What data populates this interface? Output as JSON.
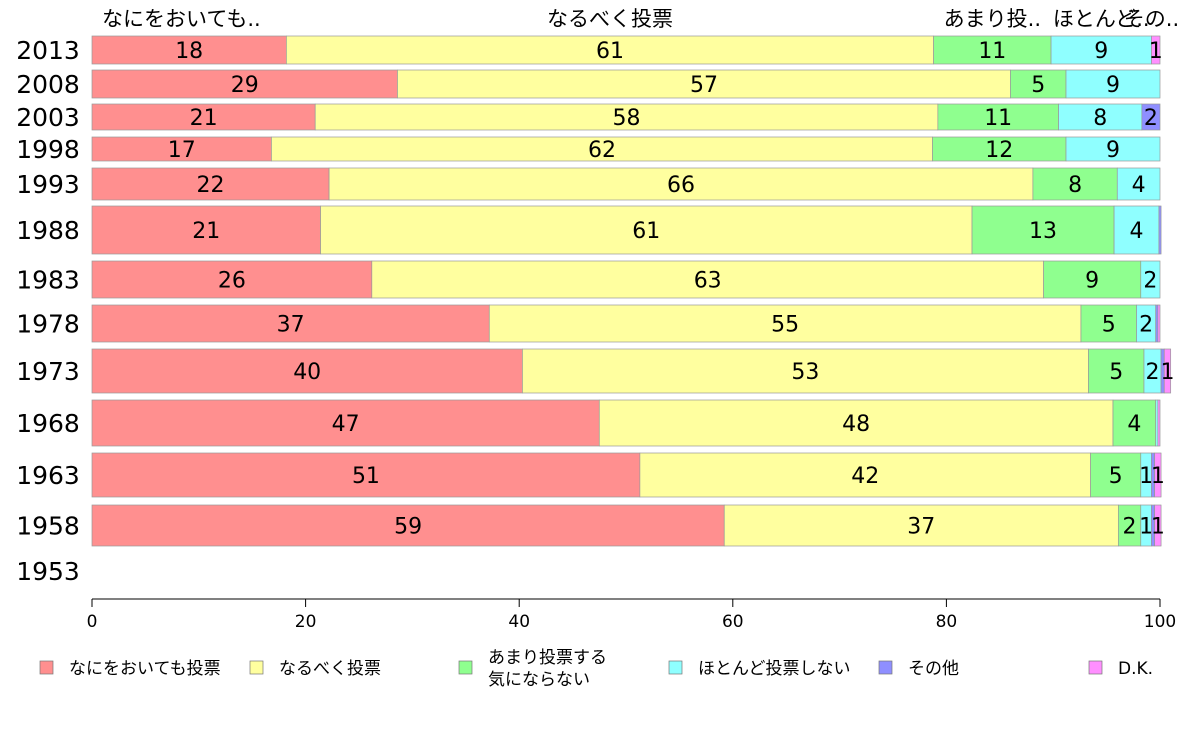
{
  "chart_data": {
    "type": "bar",
    "orientation": "horizontal",
    "stacked": true,
    "xlim": [
      0,
      100
    ],
    "xticks": [
      0,
      20,
      40,
      60,
      80,
      100
    ],
    "categories": [
      "2013",
      "2008",
      "2003",
      "1998",
      "1993",
      "1988",
      "1983",
      "1978",
      "1973",
      "1968",
      "1963",
      "1958",
      "1953"
    ],
    "column_headers": [
      "なにをおいても..",
      "なるべく投票",
      "あまり投..",
      "ほとんど..",
      "その.."
    ],
    "series": [
      {
        "name": "なにをおいても投票",
        "color": "#ff8f8f",
        "values": [
          18.2,
          28.6,
          20.9,
          16.8,
          22.2,
          21.4,
          26.2,
          37.2,
          40.3,
          47.5,
          51.3,
          59.2,
          null
        ],
        "labels": [
          "18",
          "29",
          "21",
          "17",
          "22",
          "21",
          "26",
          "37",
          "40",
          "47",
          "51",
          "59",
          ""
        ]
      },
      {
        "name": "なるべく投票",
        "color": "#ffff9f",
        "values": [
          60.6,
          57.4,
          58.3,
          61.9,
          65.9,
          61.0,
          62.9,
          55.4,
          53.0,
          48.1,
          42.2,
          36.9,
          null
        ],
        "labels": [
          "61",
          "57",
          "58",
          "62",
          "66",
          "61",
          "63",
          "55",
          "53",
          "48",
          "42",
          "37",
          ""
        ]
      },
      {
        "name": "あまり投票する気にならない",
        "color": "#8fff8f",
        "values": [
          11.0,
          5.2,
          11.3,
          12.5,
          7.9,
          13.3,
          9.1,
          5.2,
          5.2,
          4.0,
          4.7,
          2.1,
          null
        ],
        "labels": [
          "11",
          "5",
          "11",
          "12",
          "8",
          "13",
          "9",
          "5",
          "5",
          "4",
          "5",
          "2",
          ""
        ]
      },
      {
        "name": "ほとんど投票しない",
        "color": "#8fffff",
        "values": [
          9.4,
          8.8,
          7.8,
          8.8,
          4.0,
          4.2,
          1.8,
          1.8,
          1.6,
          0.2,
          1.0,
          1.0,
          null
        ],
        "labels": [
          "9",
          "9",
          "8",
          "9",
          "4",
          "4",
          "2",
          "2",
          "2",
          "",
          "1",
          "1",
          ""
        ]
      },
      {
        "name": "その他",
        "color": "#8f8fff",
        "values": [
          0.0,
          0.0,
          1.7,
          0.0,
          0.0,
          0.2,
          0.0,
          0.2,
          0.3,
          0.0,
          0.3,
          0.3,
          null
        ],
        "labels": [
          "",
          "",
          "2",
          "",
          "",
          "",
          "",
          "",
          "",
          "",
          "",
          "",
          ""
        ]
      },
      {
        "name": "D.K.",
        "color": "#ff8fff",
        "values": [
          0.8,
          0.0,
          0.0,
          0.0,
          0.0,
          0.0,
          0.0,
          0.2,
          0.6,
          0.2,
          0.6,
          0.6,
          null
        ],
        "labels": [
          "1",
          "",
          "",
          "",
          "",
          "",
          "",
          "",
          "1",
          "",
          "1",
          "1",
          ""
        ]
      }
    ],
    "legend": {
      "placement": "bottom",
      "labels": [
        [
          "なにをおいても投票"
        ],
        [
          "なるべく投票"
        ],
        [
          "あまり投票する",
          "気にならない"
        ],
        [
          "ほとんど投票しない"
        ],
        [
          "その他"
        ],
        [
          "D.K."
        ]
      ]
    },
    "grid": false
  }
}
